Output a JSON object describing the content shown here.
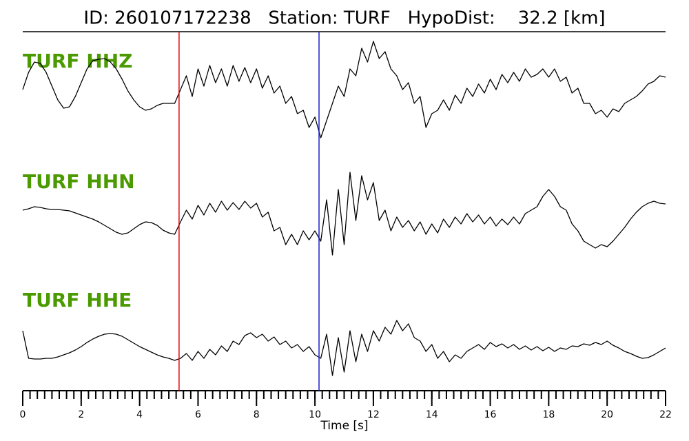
{
  "chart_data": {
    "type": "line",
    "title": "ID: 260107172238   Station: TURF   HypoDist:    32.2 [km]",
    "x_label": "Time [s]",
    "xlim": [
      0,
      22
    ],
    "xticks": [
      0,
      2,
      4,
      6,
      8,
      10,
      12,
      14,
      16,
      18,
      20,
      22
    ],
    "xminorticks": [
      0,
      0.25,
      0.5,
      0.75,
      1,
      1.25,
      1.5,
      1.75,
      2,
      2.25,
      2.5,
      2.75,
      3,
      3.25,
      3.5,
      3.75,
      4,
      4.25,
      4.5,
      4.75,
      5,
      5.25,
      5.5,
      5.75,
      6,
      6.25,
      6.5,
      6.75,
      7,
      7.25,
      7.5,
      7.75,
      8,
      8.25,
      8.5,
      8.75,
      9,
      9.25,
      9.5,
      9.75,
      10,
      10.25,
      10.5,
      10.75,
      11,
      11.25,
      11.5,
      11.75,
      12,
      12.25,
      12.5,
      12.75,
      13,
      13.25,
      13.5,
      13.75,
      14,
      14.25,
      14.5,
      14.75,
      15,
      15.25,
      15.5,
      15.75,
      16,
      16.25,
      16.5,
      16.75,
      17,
      17.25,
      17.5,
      17.75,
      18,
      18.25,
      18.5,
      18.75,
      19,
      19.25,
      19.5,
      19.75,
      20,
      20.25,
      20.5,
      20.75,
      21,
      21.25,
      21.5,
      21.75,
      22
    ],
    "ylim": [
      -90,
      90
    ],
    "markers": [
      {
        "x": 5.35,
        "color": "#e8000b"
      },
      {
        "x": 10.14,
        "color": "#1f1fd0"
      }
    ],
    "label_color": "#4a9a00",
    "x": [
      0,
      0.2,
      0.4,
      0.6,
      0.8,
      1,
      1.2,
      1.4,
      1.6,
      1.8,
      2,
      2.2,
      2.4,
      2.6,
      2.8,
      3,
      3.2,
      3.4,
      3.6,
      3.8,
      4,
      4.2,
      4.4,
      4.6,
      4.8,
      5,
      5.2,
      5.4,
      5.6,
      5.8,
      6,
      6.2,
      6.4,
      6.6,
      6.8,
      7,
      7.2,
      7.4,
      7.6,
      7.8,
      8,
      8.2,
      8.4,
      8.6,
      8.8,
      9,
      9.2,
      9.4,
      9.6,
      9.8,
      10,
      10.2,
      10.4,
      10.6,
      10.8,
      11,
      11.2,
      11.4,
      11.6,
      11.8,
      12,
      12.2,
      12.4,
      12.6,
      12.8,
      13,
      13.2,
      13.4,
      13.6,
      13.8,
      14,
      14.2,
      14.4,
      14.6,
      14.8,
      15,
      15.2,
      15.4,
      15.6,
      15.8,
      16,
      16.2,
      16.4,
      16.6,
      16.8,
      17,
      17.2,
      17.4,
      17.6,
      17.8,
      18,
      18.2,
      18.4,
      18.6,
      18.8,
      19,
      19.2,
      19.4,
      19.6,
      19.8,
      20,
      20.2,
      20.4,
      20.6,
      20.8,
      21,
      21.2,
      21.4,
      21.6,
      21.8,
      22
    ],
    "series": [
      {
        "name": "TURF HHZ",
        "color": "#000000",
        "values": [
          0,
          25,
          40,
          38,
          25,
          5,
          -15,
          -27,
          -25,
          -10,
          10,
          30,
          42,
          44,
          45,
          40,
          30,
          15,
          -2,
          -15,
          -25,
          -30,
          -28,
          -23,
          -20,
          -20,
          -20,
          0,
          20,
          -10,
          30,
          5,
          35,
          10,
          30,
          5,
          35,
          12,
          32,
          10,
          30,
          2,
          20,
          -5,
          5,
          -20,
          -10,
          -35,
          -30,
          -55,
          -40,
          -70,
          -45,
          -20,
          5,
          -10,
          30,
          20,
          60,
          40,
          70,
          45,
          55,
          30,
          20,
          0,
          10,
          -20,
          -10,
          -55,
          -35,
          -30,
          -15,
          -30,
          -8,
          -20,
          2,
          -10,
          8,
          -5,
          15,
          0,
          22,
          10,
          25,
          12,
          30,
          18,
          22,
          30,
          18,
          30,
          12,
          18,
          -5,
          2,
          -20,
          -20,
          -35,
          -30,
          -40,
          -28,
          -32,
          -20,
          -15,
          -10,
          -2,
          8,
          12,
          20,
          18
        ]
      },
      {
        "name": "TURF HHN",
        "color": "#000000",
        "values": [
          5,
          7,
          10,
          9,
          7,
          6,
          6,
          5,
          4,
          1,
          -2,
          -5,
          -8,
          -12,
          -17,
          -22,
          -27,
          -30,
          -28,
          -22,
          -16,
          -12,
          -13,
          -17,
          -24,
          -28,
          -30,
          -12,
          5,
          -8,
          12,
          -2,
          15,
          2,
          18,
          5,
          16,
          6,
          18,
          8,
          15,
          -5,
          2,
          -25,
          -20,
          -45,
          -30,
          -45,
          -25,
          -38,
          -25,
          -40,
          20,
          -60,
          35,
          -45,
          60,
          -10,
          55,
          20,
          45,
          -10,
          5,
          -25,
          -5,
          -20,
          -10,
          -25,
          -12,
          -30,
          -15,
          -28,
          -8,
          -20,
          -5,
          -15,
          0,
          -12,
          -2,
          -15,
          -5,
          -18,
          -8,
          -16,
          -5,
          -15,
          0,
          5,
          10,
          25,
          35,
          25,
          10,
          5,
          -15,
          -25,
          -40,
          -45,
          -50,
          -45,
          -48,
          -40,
          -30,
          -20,
          -8,
          2,
          10,
          15,
          18,
          15,
          14
        ]
      },
      {
        "name": "TURF HHE",
        "color": "#000000",
        "values": [
          25,
          -15,
          -16,
          -16,
          -15,
          -15,
          -13,
          -10,
          -7,
          -3,
          2,
          8,
          13,
          17,
          20,
          21,
          20,
          17,
          12,
          7,
          2,
          -2,
          -6,
          -10,
          -13,
          -15,
          -18,
          -15,
          -8,
          -18,
          -5,
          -15,
          -2,
          -10,
          3,
          -5,
          10,
          5,
          18,
          22,
          15,
          20,
          10,
          16,
          5,
          10,
          0,
          5,
          -5,
          2,
          -10,
          -15,
          20,
          -40,
          15,
          -35,
          25,
          -20,
          20,
          -5,
          25,
          10,
          30,
          20,
          40,
          25,
          35,
          15,
          10,
          -5,
          5,
          -15,
          -5,
          -20,
          -10,
          -15,
          -5,
          0,
          5,
          -2,
          8,
          2,
          6,
          0,
          5,
          -2,
          3,
          -3,
          2,
          -4,
          1,
          -5,
          0,
          -2,
          3,
          2,
          6,
          4,
          8,
          5,
          10,
          4,
          0,
          -5,
          -8,
          -12,
          -15,
          -14,
          -10,
          -5,
          0
        ]
      }
    ]
  }
}
